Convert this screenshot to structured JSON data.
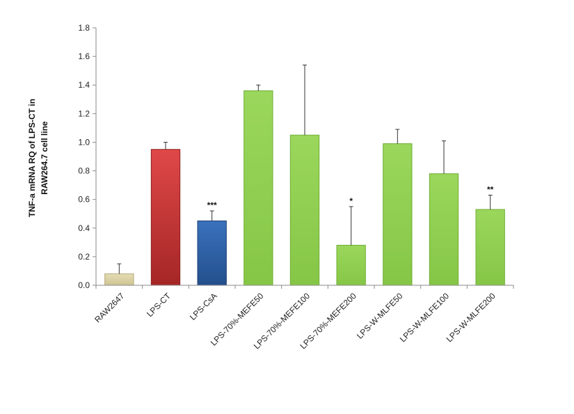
{
  "chart_data": {
    "type": "bar",
    "ylabel_lines": [
      "TNF-a  mRNA  RQ of  LPS-CT in",
      "RAW264.7 cell line"
    ],
    "ylim": [
      0,
      1.8
    ],
    "yticks": [
      "0.0",
      "0.2",
      "0.4",
      "0.6",
      "0.8",
      "1.0",
      "1.2",
      "1.4",
      "1.6",
      "1.8"
    ],
    "grid": false,
    "categories": [
      "RAW2647",
      "LPS-CT",
      "LPS-CsA",
      "LPS-70%-MEFE50",
      "LPS-70%-MEFE100",
      "LPS-70%-MEFE200",
      "LPS-W-MLFE50",
      "LPS-W-MLFE100",
      "LPS-W-MLFE200"
    ],
    "values": [
      0.08,
      0.95,
      0.45,
      1.36,
      1.05,
      0.28,
      0.99,
      0.78,
      0.53
    ],
    "errors": [
      0.07,
      0.05,
      0.07,
      0.04,
      0.49,
      0.27,
      0.1,
      0.23,
      0.1
    ],
    "significance": [
      "",
      "",
      "***",
      "",
      "",
      "*",
      "",
      "",
      "**"
    ],
    "colors": {
      "RAW2647": "#ddd4a6",
      "LPS-CT": "#cc3333",
      "LPS-CsA": "#2e62a8",
      "green": "#92d050"
    },
    "bar_colors": [
      "#ddd4a6",
      "#cc3333",
      "#2e62a8",
      "#92d050",
      "#92d050",
      "#92d050",
      "#92d050",
      "#92d050",
      "#92d050"
    ]
  }
}
